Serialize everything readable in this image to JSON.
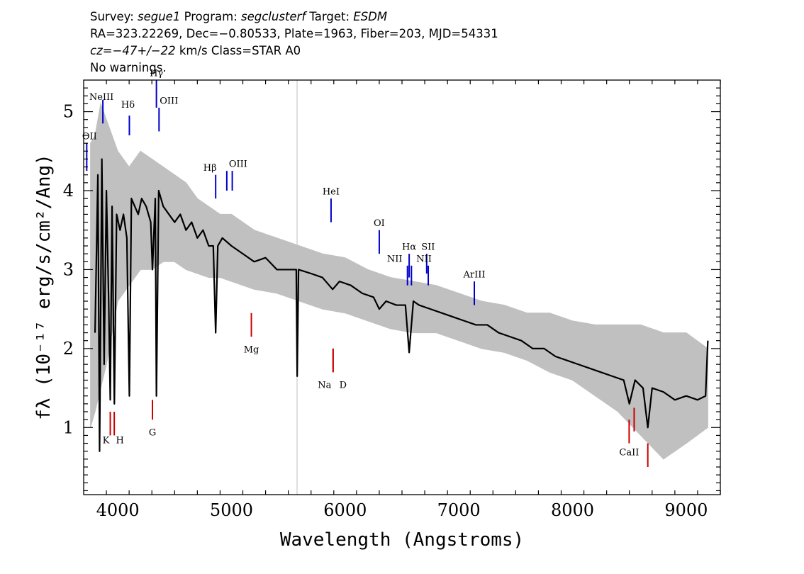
{
  "header": {
    "line1": {
      "survey_label": "Survey: ",
      "survey": "segue1",
      "program_label": " Program: ",
      "program": "segclusterf",
      "target_label": " Target: ",
      "target": "ESDM"
    },
    "line2": "RA=323.22269, Dec=−0.80533, Plate=1963, Fiber=203, MJD=54331",
    "line3": {
      "cz": "cz=−47+/−22",
      "rest": " km/s Class=STAR A0"
    },
    "line4": "No warnings."
  },
  "chart_data": {
    "type": "line",
    "xlabel": "Wavelength (Angstroms)",
    "ylabel": "fλ (10⁻¹⁷ erg/s/cm²/Ang)",
    "xlim": [
      3700,
      9300
    ],
    "ylim": [
      0.15,
      5.4
    ],
    "x_ticks": [
      4000,
      5000,
      6000,
      7000,
      8000,
      9000
    ],
    "y_ticks": [
      1,
      2,
      3,
      4,
      5
    ],
    "grid": false,
    "series": [
      {
        "role": "flux",
        "color": "#000000",
        "points": [
          [
            3800,
            2.2
          ],
          [
            3825,
            4.2
          ],
          [
            3840,
            0.7
          ],
          [
            3860,
            4.4
          ],
          [
            3880,
            1.8
          ],
          [
            3900,
            4.0
          ],
          [
            3920,
            2.6
          ],
          [
            3934,
            1.35
          ],
          [
            3950,
            3.8
          ],
          [
            3970,
            1.3
          ],
          [
            3990,
            3.7
          ],
          [
            4020,
            3.5
          ],
          [
            4050,
            3.7
          ],
          [
            4080,
            3.4
          ],
          [
            4102,
            1.4
          ],
          [
            4120,
            3.9
          ],
          [
            4150,
            3.8
          ],
          [
            4180,
            3.7
          ],
          [
            4210,
            3.9
          ],
          [
            4250,
            3.8
          ],
          [
            4290,
            3.6
          ],
          [
            4305,
            3.0
          ],
          [
            4330,
            3.9
          ],
          [
            4340,
            1.4
          ],
          [
            4360,
            4.0
          ],
          [
            4400,
            3.8
          ],
          [
            4450,
            3.7
          ],
          [
            4500,
            3.6
          ],
          [
            4550,
            3.7
          ],
          [
            4600,
            3.5
          ],
          [
            4650,
            3.6
          ],
          [
            4700,
            3.4
          ],
          [
            4750,
            3.5
          ],
          [
            4800,
            3.3
          ],
          [
            4840,
            3.3
          ],
          [
            4861,
            2.2
          ],
          [
            4880,
            3.3
          ],
          [
            4920,
            3.4
          ],
          [
            5000,
            3.3
          ],
          [
            5100,
            3.2
          ],
          [
            5200,
            3.1
          ],
          [
            5300,
            3.15
          ],
          [
            5400,
            3.0
          ],
          [
            5500,
            3.0
          ],
          [
            5570,
            3.0
          ],
          [
            5578,
            1.65
          ],
          [
            5590,
            3.0
          ],
          [
            5700,
            2.95
          ],
          [
            5800,
            2.9
          ],
          [
            5890,
            2.75
          ],
          [
            5950,
            2.85
          ],
          [
            6050,
            2.8
          ],
          [
            6150,
            2.7
          ],
          [
            6250,
            2.65
          ],
          [
            6300,
            2.5
          ],
          [
            6360,
            2.6
          ],
          [
            6450,
            2.55
          ],
          [
            6530,
            2.55
          ],
          [
            6563,
            1.95
          ],
          [
            6600,
            2.6
          ],
          [
            6650,
            2.55
          ],
          [
            6750,
            2.5
          ],
          [
            6850,
            2.45
          ],
          [
            6950,
            2.4
          ],
          [
            7050,
            2.35
          ],
          [
            7150,
            2.3
          ],
          [
            7250,
            2.3
          ],
          [
            7350,
            2.2
          ],
          [
            7450,
            2.15
          ],
          [
            7550,
            2.1
          ],
          [
            7650,
            2.0
          ],
          [
            7750,
            2.0
          ],
          [
            7850,
            1.9
          ],
          [
            7950,
            1.85
          ],
          [
            8050,
            1.8
          ],
          [
            8150,
            1.75
          ],
          [
            8250,
            1.7
          ],
          [
            8350,
            1.65
          ],
          [
            8450,
            1.6
          ],
          [
            8500,
            1.3
          ],
          [
            8550,
            1.6
          ],
          [
            8620,
            1.5
          ],
          [
            8662,
            1.0
          ],
          [
            8700,
            1.5
          ],
          [
            8800,
            1.45
          ],
          [
            8900,
            1.35
          ],
          [
            9000,
            1.4
          ],
          [
            9100,
            1.35
          ],
          [
            9170,
            1.4
          ],
          [
            9190,
            2.1
          ]
        ]
      },
      {
        "role": "flux error envelope",
        "color": "#c0c0c0",
        "upper": [
          [
            3760,
            4.6
          ],
          [
            3800,
            4.7
          ],
          [
            3850,
            5.1
          ],
          [
            3900,
            4.9
          ],
          [
            3950,
            4.7
          ],
          [
            4000,
            4.5
          ],
          [
            4100,
            4.3
          ],
          [
            4200,
            4.5
          ],
          [
            4300,
            4.4
          ],
          [
            4400,
            4.3
          ],
          [
            4500,
            4.2
          ],
          [
            4600,
            4.1
          ],
          [
            4700,
            3.9
          ],
          [
            4800,
            3.8
          ],
          [
            4900,
            3.7
          ],
          [
            5000,
            3.7
          ],
          [
            5200,
            3.5
          ],
          [
            5400,
            3.4
          ],
          [
            5600,
            3.3
          ],
          [
            5800,
            3.2
          ],
          [
            6000,
            3.15
          ],
          [
            6200,
            3.0
          ],
          [
            6400,
            2.9
          ],
          [
            6600,
            2.85
          ],
          [
            6800,
            2.8
          ],
          [
            7000,
            2.7
          ],
          [
            7200,
            2.6
          ],
          [
            7400,
            2.55
          ],
          [
            7600,
            2.45
          ],
          [
            7800,
            2.45
          ],
          [
            8000,
            2.35
          ],
          [
            8200,
            2.3
          ],
          [
            8400,
            2.3
          ],
          [
            8600,
            2.3
          ],
          [
            8800,
            2.2
          ],
          [
            9000,
            2.2
          ],
          [
            9190,
            2.0
          ]
        ],
        "lower": [
          [
            3760,
            1.0
          ],
          [
            3800,
            1.2
          ],
          [
            3850,
            1.5
          ],
          [
            3900,
            1.8
          ],
          [
            3950,
            2.2
          ],
          [
            4000,
            2.6
          ],
          [
            4100,
            2.8
          ],
          [
            4200,
            3.0
          ],
          [
            4300,
            3.0
          ],
          [
            4400,
            3.1
          ],
          [
            4500,
            3.1
          ],
          [
            4600,
            3.0
          ],
          [
            4700,
            2.95
          ],
          [
            4800,
            2.9
          ],
          [
            4900,
            2.9
          ],
          [
            5000,
            2.85
          ],
          [
            5200,
            2.75
          ],
          [
            5400,
            2.7
          ],
          [
            5600,
            2.6
          ],
          [
            5800,
            2.5
          ],
          [
            6000,
            2.45
          ],
          [
            6200,
            2.35
          ],
          [
            6400,
            2.25
          ],
          [
            6600,
            2.2
          ],
          [
            6800,
            2.2
          ],
          [
            7000,
            2.1
          ],
          [
            7200,
            2.0
          ],
          [
            7400,
            1.95
          ],
          [
            7600,
            1.85
          ],
          [
            7800,
            1.7
          ],
          [
            8000,
            1.6
          ],
          [
            8200,
            1.4
          ],
          [
            8400,
            1.2
          ],
          [
            8600,
            0.9
          ],
          [
            8800,
            0.6
          ],
          [
            9000,
            0.8
          ],
          [
            9190,
            1.0
          ]
        ]
      },
      {
        "role": "sky line",
        "color": "#c0c0c0",
        "x": 5577
      }
    ],
    "emission_lines": [
      {
        "label": "NeIII",
        "x": 3869,
        "y1": 4.85,
        "y2": 5.15,
        "label_y": 5.15
      },
      {
        "label": "OII",
        "x": 3727,
        "y1": 4.25,
        "y2": 4.6,
        "label_y": 4.65
      },
      {
        "label": "Hδ",
        "x": 4102,
        "y1": 4.7,
        "y2": 4.95,
        "label_y": 5.05
      },
      {
        "label": "Hγ",
        "x": 4340,
        "y1": 5.05,
        "y2": 5.4,
        "label_y": 5.45
      },
      {
        "label": "OIII",
        "x": 4363,
        "y1": 4.75,
        "y2": 5.05,
        "label_y": 5.1
      },
      {
        "label": "Hβ",
        "x": 4861,
        "y1": 3.9,
        "y2": 4.2,
        "label_y": 4.25
      },
      {
        "label": "OIII",
        "x": 4959,
        "y1": 4.0,
        "y2": 4.25,
        "label_y": 4.3
      },
      {
        "label": "",
        "x": 5007,
        "y1": 4.0,
        "y2": 4.25,
        "label_y": 4.3
      },
      {
        "label": "HeI",
        "x": 5876,
        "y1": 3.6,
        "y2": 3.9,
        "label_y": 3.95
      },
      {
        "label": "OI",
        "x": 6300,
        "y1": 3.2,
        "y2": 3.5,
        "label_y": 3.55
      },
      {
        "label": "NII",
        "x": 6548,
        "y1": 2.8,
        "y2": 3.05,
        "label_y": 3.1
      },
      {
        "label": "Hα",
        "x": 6563,
        "y1": 2.9,
        "y2": 3.2,
        "label_y": 3.25
      },
      {
        "label": "",
        "x": 6583,
        "y1": 2.8,
        "y2": 3.05,
        "label_y": 3.1
      },
      {
        "label": "SII",
        "x": 6717,
        "y1": 2.95,
        "y2": 3.2,
        "label_y": 3.25
      },
      {
        "label": "NII",
        "x": 6731,
        "y1": 2.8,
        "y2": 3.05,
        "label_y": 3.1
      },
      {
        "label": "ArIII",
        "x": 7136,
        "y1": 2.55,
        "y2": 2.85,
        "label_y": 2.9
      }
    ],
    "absorption_lines": [
      {
        "label": "K",
        "x": 3934,
        "y1": 0.9,
        "y2": 1.2,
        "label_y": 0.8
      },
      {
        "label": "H",
        "x": 3969,
        "y1": 0.9,
        "y2": 1.2,
        "label_y": 0.8
      },
      {
        "label": "G",
        "x": 4305,
        "y1": 1.1,
        "y2": 1.35,
        "label_y": 0.9
      },
      {
        "label": "Mg",
        "x": 5175,
        "y1": 2.15,
        "y2": 2.45,
        "label_y": 1.95
      },
      {
        "label": "Na",
        "x": 5894,
        "y1": 1.7,
        "y2": 2.0,
        "label_y": 1.5
      },
      {
        "label": "D",
        "x": 5894,
        "y1": 1.7,
        "y2": 2.0,
        "label_y": 1.5
      },
      {
        "label": "CaII",
        "x": 8498,
        "y1": 0.8,
        "y2": 1.1,
        "label_y": 0.65
      },
      {
        "label": "",
        "x": 8542,
        "y1": 0.95,
        "y2": 1.25,
        "label_y": 0.65
      },
      {
        "label": "",
        "x": 8662,
        "y1": 0.5,
        "y2": 0.8,
        "label_y": 0.65
      }
    ],
    "emission_color": "#0000cc",
    "absorption_color": "#cc0000"
  }
}
